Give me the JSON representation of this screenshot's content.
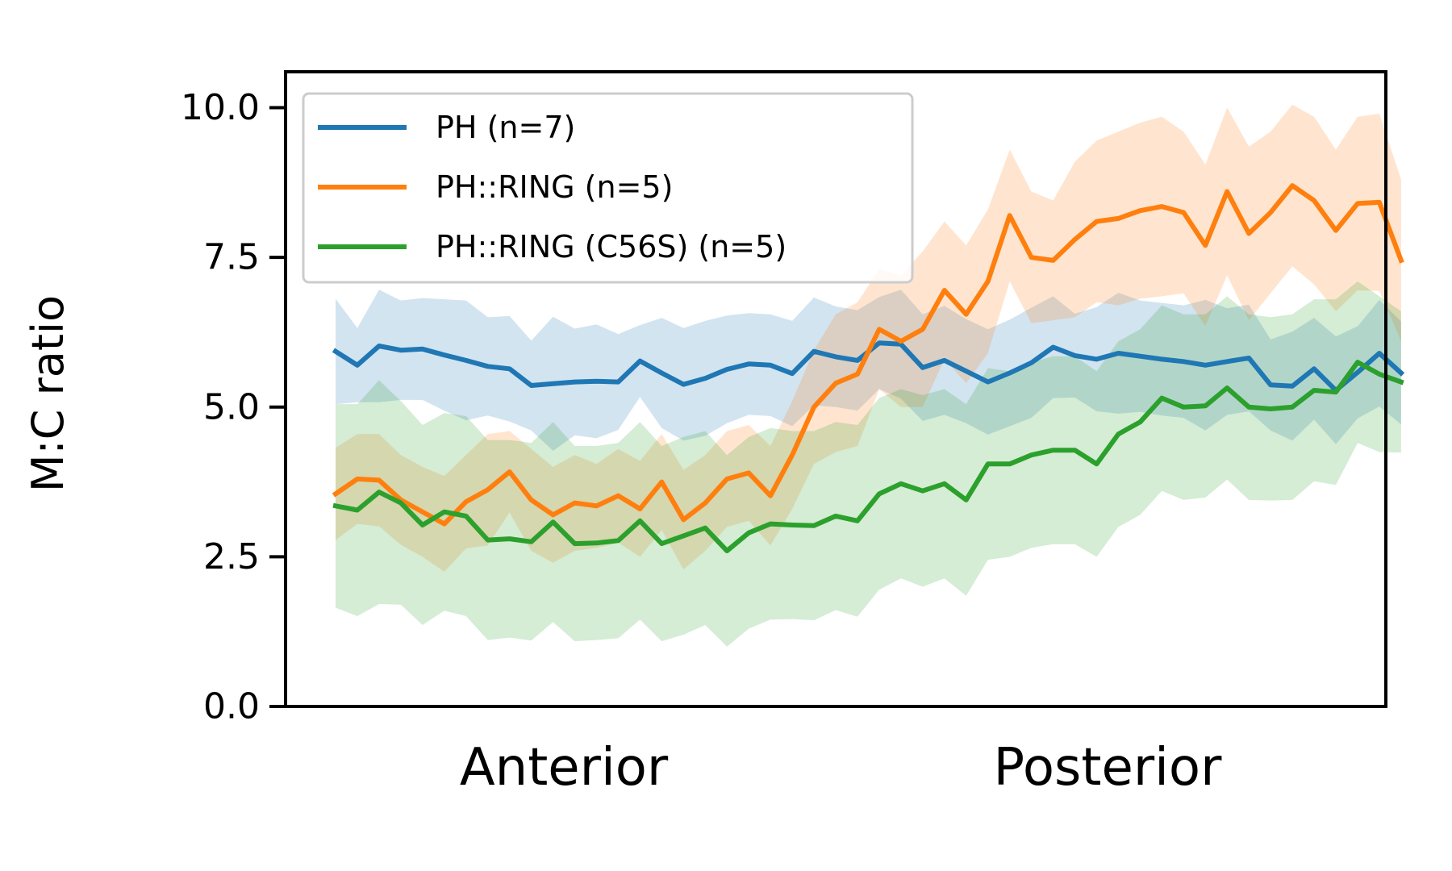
{
  "chart_data": {
    "type": "line",
    "title": "",
    "xlabel": "",
    "ylabel": "M:C ratio",
    "ylim": [
      0,
      10.6
    ],
    "xlim": [
      -2.3,
      48.3
    ],
    "grid": false,
    "legend_position": "top-left",
    "x_tick_labels": [
      {
        "position": 10.5,
        "label": "Anterior"
      },
      {
        "position": 35.5,
        "label": "Posterior"
      }
    ],
    "y_ticks": [
      0.0,
      2.5,
      5.0,
      7.5,
      10.0
    ],
    "y_tick_labels": [
      "0.0",
      "2.5",
      "5.0",
      "7.5",
      "10.0"
    ],
    "x": [
      0,
      1,
      2,
      3,
      4,
      5,
      6,
      7,
      8,
      9,
      10,
      11,
      12,
      13,
      14,
      15,
      16,
      17,
      18,
      19,
      20,
      21,
      22,
      23,
      24,
      25,
      26,
      27,
      28,
      29,
      30,
      31,
      32,
      33,
      34,
      35,
      36,
      37,
      38,
      39,
      40,
      41,
      42,
      43,
      44,
      45,
      46,
      47,
      48,
      49
    ],
    "series": [
      {
        "name": "PH (n=7)",
        "color": "#1f77b4",
        "values": [
          5.93,
          5.7,
          6.02,
          5.95,
          5.97,
          5.87,
          5.78,
          5.68,
          5.64,
          5.36,
          5.39,
          5.42,
          5.43,
          5.42,
          5.77,
          5.57,
          5.38,
          5.48,
          5.63,
          5.72,
          5.7,
          5.56,
          5.93,
          5.84,
          5.78,
          6.07,
          6.05,
          5.66,
          5.78,
          5.6,
          5.42,
          5.57,
          5.74,
          6.0,
          5.86,
          5.8,
          5.9,
          5.85,
          5.8,
          5.76,
          5.7,
          5.76,
          5.82,
          5.37,
          5.35,
          5.64,
          5.28,
          5.58,
          5.9,
          5.57
        ],
        "upper": [
          6.81,
          6.32,
          6.96,
          6.78,
          6.82,
          6.8,
          6.78,
          6.5,
          6.52,
          6.11,
          6.51,
          6.31,
          6.38,
          6.22,
          6.37,
          6.49,
          6.32,
          6.44,
          6.53,
          6.57,
          6.55,
          6.44,
          6.83,
          6.68,
          6.62,
          6.84,
          6.96,
          6.55,
          6.69,
          6.47,
          6.3,
          6.46,
          6.66,
          6.85,
          6.56,
          6.67,
          6.91,
          6.78,
          6.74,
          6.7,
          6.79,
          6.65,
          6.71,
          6.13,
          6.26,
          6.49,
          6.18,
          6.35,
          6.79,
          6.43
        ],
        "lower": [
          5.05,
          5.08,
          5.08,
          5.12,
          5.12,
          4.94,
          4.78,
          4.86,
          4.76,
          4.61,
          4.27,
          4.53,
          4.48,
          4.62,
          5.17,
          4.65,
          4.44,
          4.52,
          4.73,
          4.87,
          4.85,
          4.68,
          5.03,
          5.0,
          4.94,
          5.3,
          5.14,
          4.77,
          4.87,
          4.73,
          4.54,
          4.68,
          4.82,
          5.15,
          5.16,
          4.93,
          4.89,
          4.92,
          4.86,
          4.82,
          4.61,
          4.87,
          4.93,
          4.61,
          4.44,
          4.79,
          4.38,
          4.81,
          5.01,
          4.71
        ]
      },
      {
        "name": "PH::RING (n=5)",
        "color": "#ff7f0e",
        "values": [
          3.55,
          3.8,
          3.78,
          3.45,
          3.25,
          3.05,
          3.42,
          3.62,
          3.92,
          3.45,
          3.2,
          3.4,
          3.35,
          3.52,
          3.3,
          3.75,
          3.12,
          3.4,
          3.8,
          3.9,
          3.52,
          4.2,
          5.0,
          5.4,
          5.55,
          6.3,
          6.1,
          6.3,
          6.95,
          6.55,
          7.1,
          8.2,
          7.5,
          7.45,
          7.8,
          8.1,
          8.15,
          8.28,
          8.35,
          8.25,
          7.7,
          8.6,
          7.9,
          8.25,
          8.7,
          8.45,
          7.95,
          8.4,
          8.42,
          7.45
        ],
        "upper": [
          4.32,
          4.55,
          4.55,
          4.2,
          4.0,
          3.85,
          4.2,
          4.55,
          4.6,
          4.3,
          4.0,
          4.2,
          4.05,
          4.3,
          4.1,
          4.55,
          3.95,
          4.2,
          4.6,
          4.7,
          4.35,
          5.1,
          5.95,
          6.55,
          6.75,
          7.3,
          7.2,
          7.6,
          8.1,
          7.7,
          8.3,
          9.3,
          8.6,
          8.45,
          9.1,
          9.45,
          9.6,
          9.75,
          9.85,
          9.6,
          9.05,
          10.0,
          9.35,
          9.6,
          10.05,
          9.85,
          9.3,
          9.85,
          9.9,
          8.8
        ],
        "lower": [
          2.78,
          3.05,
          3.01,
          2.7,
          2.5,
          2.25,
          2.64,
          2.69,
          3.24,
          2.6,
          2.4,
          2.6,
          2.65,
          2.74,
          2.5,
          2.95,
          2.29,
          2.6,
          3.0,
          3.1,
          2.69,
          3.3,
          4.05,
          4.25,
          4.35,
          5.3,
          5.0,
          5.0,
          5.8,
          5.4,
          5.9,
          7.1,
          6.4,
          6.45,
          6.5,
          6.75,
          6.7,
          6.81,
          6.85,
          6.9,
          6.35,
          7.2,
          6.45,
          6.9,
          7.35,
          7.05,
          6.6,
          6.95,
          6.94,
          6.1
        ]
      },
      {
        "name": "PH::RING (C56S) (n=5)",
        "color": "#2ca02c",
        "values": [
          3.35,
          3.28,
          3.58,
          3.4,
          3.03,
          3.25,
          3.18,
          2.78,
          2.8,
          2.75,
          3.08,
          2.72,
          2.73,
          2.77,
          3.1,
          2.72,
          2.85,
          2.98,
          2.6,
          2.9,
          3.05,
          3.03,
          3.02,
          3.18,
          3.1,
          3.55,
          3.72,
          3.6,
          3.72,
          3.45,
          4.05,
          4.05,
          4.2,
          4.28,
          4.28,
          4.05,
          4.55,
          4.75,
          5.15,
          5.0,
          5.02,
          5.32,
          5.0,
          4.97,
          5.0,
          5.28,
          5.25,
          5.75,
          5.55,
          5.42
        ],
        "upper": [
          5.05,
          5.05,
          5.45,
          5.1,
          4.7,
          4.9,
          4.85,
          4.45,
          4.45,
          4.4,
          4.75,
          4.35,
          4.35,
          4.4,
          4.75,
          4.35,
          4.5,
          4.6,
          4.2,
          4.5,
          4.65,
          4.6,
          4.6,
          4.75,
          4.7,
          5.15,
          5.3,
          5.2,
          5.3,
          5.05,
          5.65,
          5.6,
          5.75,
          5.85,
          5.85,
          5.6,
          6.1,
          6.3,
          6.7,
          6.55,
          6.55,
          6.85,
          6.55,
          6.5,
          6.55,
          6.8,
          6.8,
          7.1,
          6.85,
          6.6
        ],
        "lower": [
          1.65,
          1.51,
          1.71,
          1.7,
          1.36,
          1.6,
          1.51,
          1.11,
          1.15,
          1.1,
          1.41,
          1.09,
          1.11,
          1.14,
          1.45,
          1.09,
          1.2,
          1.36,
          1.0,
          1.3,
          1.45,
          1.46,
          1.44,
          1.61,
          1.5,
          1.95,
          2.14,
          2.0,
          2.14,
          1.85,
          2.45,
          2.5,
          2.65,
          2.71,
          2.71,
          2.5,
          3.0,
          3.2,
          3.6,
          3.45,
          3.49,
          3.79,
          3.45,
          3.44,
          3.45,
          3.76,
          3.7,
          4.4,
          4.25,
          4.24
        ]
      }
    ]
  }
}
